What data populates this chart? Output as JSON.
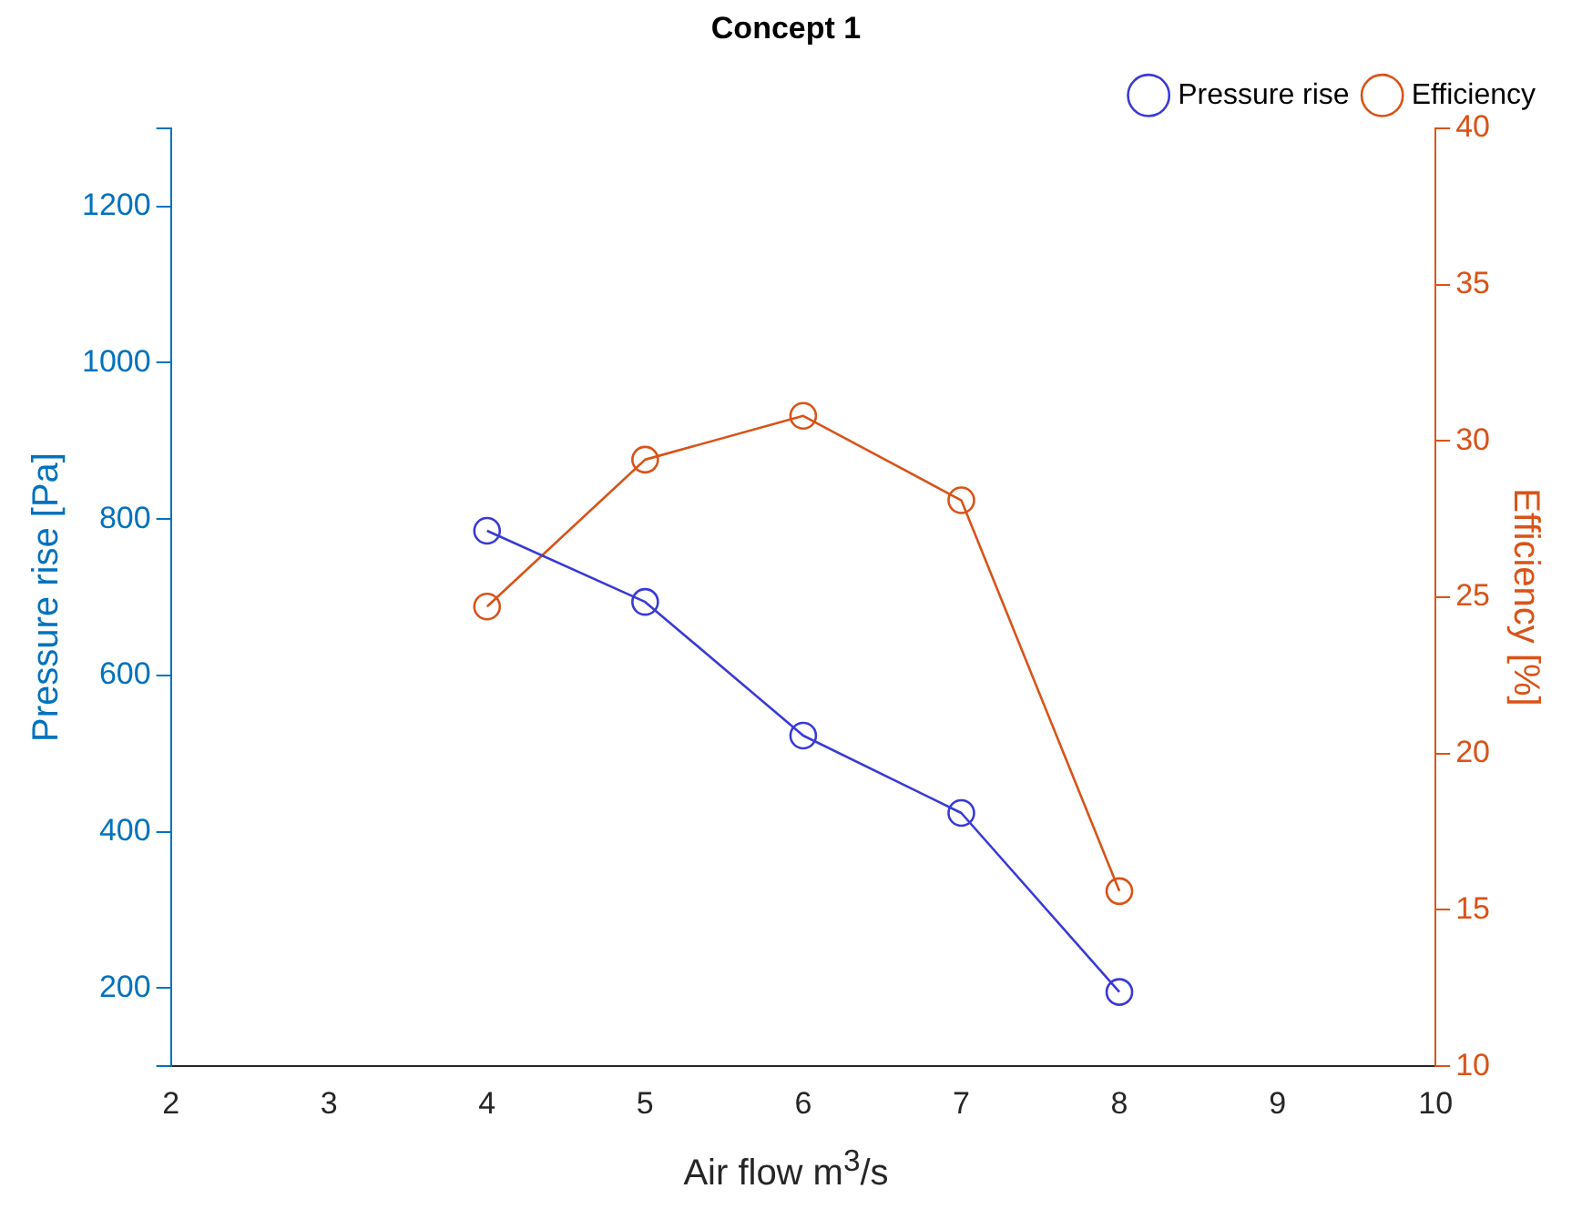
{
  "chart_data": {
    "type": "line",
    "title": "Concept 1",
    "xlabel": "Air flow m$^{3}$/s",
    "ylabel": "Pressure rise [Pa]",
    "y2label": "Efficiency [%]",
    "x": [
      4,
      5,
      6,
      7,
      8
    ],
    "series": [
      {
        "name": "Pressure rise",
        "color": "#3a3ad6",
        "values": [
          785,
          694,
          523,
          424,
          195
        ]
      },
      {
        "name": "Efficiency",
        "color": "#d95319",
        "axis": "y2",
        "values": [
          24.7,
          29.4,
          30.8,
          28.1,
          15.6
        ]
      }
    ],
    "xlim": [
      2,
      10
    ],
    "xticks": [
      2,
      3,
      4,
      5,
      6,
      7,
      8,
      9,
      10
    ],
    "ylim": [
      100,
      1300
    ],
    "yticks": [
      {
        "value": 100,
        "label": null
      },
      200,
      400,
      600,
      800,
      1000,
      1200,
      {
        "value": 1300,
        "label": null
      }
    ],
    "y2lim": [
      10,
      40
    ],
    "y2ticks": [
      10,
      15,
      20,
      25,
      30,
      35,
      40
    ],
    "grid": false,
    "legend": "top right",
    "marker": "circle",
    "line_style": "solid"
  }
}
